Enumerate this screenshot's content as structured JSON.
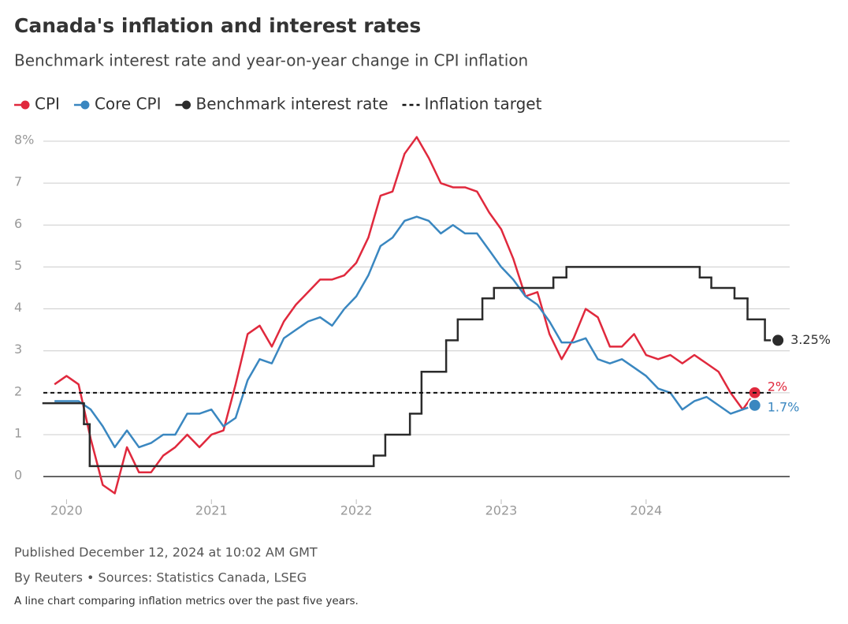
{
  "chart_data": {
    "type": "line",
    "title": "Canada's inflation and interest rates",
    "subtitle": "Benchmark interest rate and year-on-year change in CPI inflation",
    "published": "Published December 12, 2024 at 10:02 AM GMT",
    "byline": "By Reuters • Sources: Statistics Canada, LSEG",
    "caption": "A line chart comparing inflation metrics over the past five years.",
    "xlim": [
      2019.84,
      2024.98
    ],
    "xticks": [
      2020,
      2021,
      2022,
      2023,
      2024
    ],
    "ylim": [
      -0.6,
      8
    ],
    "yticks": [
      0,
      1,
      2,
      3,
      4,
      5,
      6,
      7,
      {
        "value": 8,
        "label": "8%"
      }
    ],
    "grid": true,
    "legend": "top",
    "x": [
      2019.917,
      2020,
      2020.083,
      2020.167,
      2020.25,
      2020.333,
      2020.417,
      2020.5,
      2020.583,
      2020.667,
      2020.75,
      2020.833,
      2020.917,
      2021,
      2021.083,
      2021.167,
      2021.25,
      2021.333,
      2021.417,
      2021.5,
      2021.583,
      2021.667,
      2021.75,
      2021.833,
      2021.917,
      2022,
      2022.083,
      2022.167,
      2022.25,
      2022.333,
      2022.417,
      2022.5,
      2022.583,
      2022.667,
      2022.75,
      2022.833,
      2022.917,
      2023,
      2023.083,
      2023.167,
      2023.25,
      2023.333,
      2023.417,
      2023.5,
      2023.583,
      2023.667,
      2023.75,
      2023.833,
      2023.917,
      2024,
      2024.083,
      2024.167,
      2024.25,
      2024.333,
      2024.417,
      2024.5,
      2024.583,
      2024.667,
      2024.75
    ],
    "series": [
      {
        "name": "CPI",
        "color": "#e0293d",
        "marker": "dot",
        "values": [
          2.2,
          2.4,
          2.2,
          0.9,
          -0.2,
          -0.4,
          0.7,
          0.1,
          0.1,
          0.5,
          0.7,
          1.0,
          0.7,
          1.0,
          1.1,
          2.2,
          3.4,
          3.6,
          3.1,
          3.7,
          4.1,
          4.4,
          4.7,
          4.7,
          4.8,
          5.1,
          5.7,
          6.7,
          6.8,
          7.7,
          8.1,
          7.6,
          7.0,
          6.9,
          6.9,
          6.8,
          6.3,
          5.9,
          5.2,
          4.3,
          4.4,
          3.4,
          2.8,
          3.3,
          4.0,
          3.8,
          3.1,
          3.1,
          3.4,
          2.9,
          2.8,
          2.9,
          2.7,
          2.9,
          2.7,
          2.5,
          2.0,
          1.6,
          2.0
        ],
        "value_labels": [
          null,
          null,
          null,
          null,
          null,
          null,
          null,
          null,
          null,
          null,
          null,
          null,
          null,
          null,
          null,
          null,
          null,
          null,
          null,
          null,
          null,
          null,
          null,
          null,
          null,
          null,
          null,
          null,
          null,
          null,
          null,
          null,
          null,
          null,
          null,
          null,
          null,
          null,
          null,
          null,
          null,
          null,
          null,
          null,
          null,
          null,
          null,
          null,
          null,
          null,
          null,
          null,
          null,
          null,
          null,
          null,
          null,
          null,
          "2%"
        ]
      },
      {
        "name": "Core CPI",
        "color": "#3a87c0",
        "marker": "dot",
        "values": [
          1.8,
          1.8,
          1.8,
          1.6,
          1.2,
          0.7,
          1.1,
          0.7,
          0.8,
          1.0,
          1.0,
          1.5,
          1.5,
          1.6,
          1.2,
          1.4,
          2.3,
          2.8,
          2.7,
          3.3,
          3.5,
          3.7,
          3.8,
          3.6,
          4.0,
          4.3,
          4.8,
          5.5,
          5.7,
          6.1,
          6.2,
          6.1,
          5.8,
          6.0,
          5.8,
          5.8,
          5.4,
          5.0,
          4.7,
          4.3,
          4.1,
          3.7,
          3.2,
          3.2,
          3.3,
          2.8,
          2.7,
          2.8,
          2.6,
          2.4,
          2.1,
          2.0,
          1.6,
          1.8,
          1.9,
          1.7,
          1.5,
          1.6,
          1.7
        ],
        "value_labels": [
          null,
          null,
          null,
          null,
          null,
          null,
          null,
          null,
          null,
          null,
          null,
          null,
          null,
          null,
          null,
          null,
          null,
          null,
          null,
          null,
          null,
          null,
          null,
          null,
          null,
          null,
          null,
          null,
          null,
          null,
          null,
          null,
          null,
          null,
          null,
          null,
          null,
          null,
          null,
          null,
          null,
          null,
          null,
          null,
          null,
          null,
          null,
          null,
          null,
          null,
          null,
          null,
          null,
          null,
          null,
          null,
          null,
          null,
          "1.7%"
        ]
      },
      {
        "name": "Benchmark interest rate",
        "color": "#2b2b2b",
        "marker": "dot",
        "step": true,
        "x": [
          2019.84,
          2020.12,
          2020.16,
          2022.12,
          2022.2,
          2022.37,
          2022.45,
          2022.62,
          2022.7,
          2022.87,
          2022.95,
          2023.36,
          2023.45,
          2024.37,
          2024.45,
          2024.61,
          2024.7,
          2024.82,
          2024.91
        ],
        "values": [
          1.75,
          1.25,
          0.25,
          0.5,
          1.0,
          1.5,
          2.5,
          3.25,
          3.75,
          4.25,
          4.5,
          4.75,
          5.0,
          4.75,
          4.5,
          4.25,
          3.75,
          3.25,
          3.25
        ],
        "value_labels": [
          null,
          null,
          null,
          null,
          null,
          null,
          null,
          null,
          null,
          null,
          null,
          null,
          null,
          null,
          null,
          null,
          null,
          null,
          "3.25%"
        ]
      },
      {
        "name": "Inflation target",
        "color": "#111111",
        "marker": "dash",
        "dash": true,
        "x": [
          2019.84,
          2024.86
        ],
        "values": [
          2,
          2
        ]
      }
    ]
  }
}
